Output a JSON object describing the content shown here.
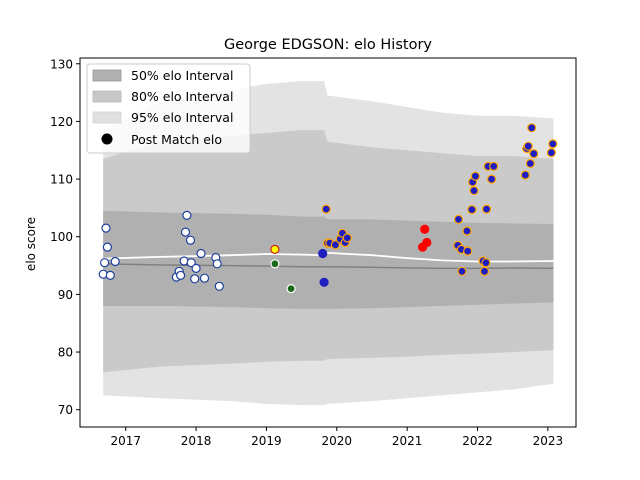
{
  "chart_data": {
    "type": "scatter",
    "title": "George EDGSON: elo History",
    "xlabel": "",
    "ylabel": "elo score",
    "xlim": [
      2016.35,
      2023.4
    ],
    "ylim": [
      67,
      131
    ],
    "x_ticks": [
      2017,
      2018,
      2019,
      2020,
      2021,
      2022,
      2023
    ],
    "x_tick_labels": [
      "2017",
      "2018",
      "2019",
      "2020",
      "2021",
      "2022",
      "2023"
    ],
    "y_ticks": [
      70,
      80,
      90,
      100,
      110,
      120,
      130
    ],
    "y_tick_labels": [
      "70",
      "80",
      "90",
      "100",
      "110",
      "120",
      "130"
    ],
    "grid": false,
    "legend_position": "top-left",
    "legend": [
      {
        "label": "50% elo Interval",
        "kind": "band50"
      },
      {
        "label": "80% elo Interval",
        "kind": "band80"
      },
      {
        "label": "95% elo Interval",
        "kind": "band95"
      },
      {
        "label": "Post Match elo",
        "kind": "marker"
      }
    ],
    "colors": {
      "band50": "#b0b0b0",
      "band80": "#c8c8c8",
      "band95": "#e0e0e0",
      "median_line": "#808080",
      "mean_line": "#ffffff"
    },
    "band_x": [
      2016.68,
      2017.5,
      2018.5,
      2019.0,
      2019.5,
      2019.82,
      2019.87,
      2020.5,
      2021.0,
      2021.5,
      2022.0,
      2022.5,
      2023.08
    ],
    "band95_upper": [
      118.5,
      123.5,
      125.5,
      126.5,
      127.0,
      127.0,
      124.5,
      123.5,
      122.5,
      121.5,
      121.0,
      121.0,
      120.5
    ],
    "band95_lower": [
      72.5,
      72.0,
      71.5,
      71.0,
      70.8,
      70.8,
      71.0,
      71.5,
      72.0,
      72.5,
      73.0,
      73.5,
      74.5
    ],
    "band80_upper": [
      113.5,
      116.5,
      117.5,
      118.0,
      118.5,
      118.5,
      116.5,
      115.5,
      115.0,
      114.5,
      114.0,
      114.0,
      113.5
    ],
    "band80_lower": [
      76.5,
      77.5,
      78.0,
      78.3,
      78.5,
      78.5,
      78.8,
      79.0,
      79.2,
      79.5,
      79.7,
      80.0,
      80.3
    ],
    "band50_upper": [
      104.5,
      104.2,
      104.0,
      103.8,
      103.5,
      103.5,
      103.0,
      103.0,
      102.8,
      102.6,
      102.4,
      102.3,
      102.2
    ],
    "band50_lower": [
      88.0,
      88.0,
      87.8,
      87.6,
      87.5,
      87.5,
      87.5,
      87.6,
      87.8,
      88.0,
      88.2,
      88.4,
      88.6
    ],
    "median_line": [
      95.3,
      95.1,
      95.0,
      94.9,
      94.8,
      94.8,
      94.8,
      94.7,
      94.6,
      94.5,
      94.5,
      94.6,
      94.5
    ],
    "mean_line": [
      96.2,
      96.5,
      96.8,
      97.0,
      96.9,
      96.8,
      97.2,
      96.8,
      96.3,
      95.9,
      95.7,
      95.7,
      95.8
    ],
    "series": [
      {
        "label": "Post Match elo",
        "fill": "#ffffff",
        "edge": "#1f3fa0",
        "points": [
          [
            2016.68,
            93.5
          ],
          [
            2016.7,
            95.5
          ],
          [
            2016.72,
            101.5
          ],
          [
            2016.74,
            98.2
          ],
          [
            2016.78,
            93.3
          ],
          [
            2016.85,
            95.7
          ],
          [
            2017.72,
            93.0
          ],
          [
            2017.76,
            94.0
          ],
          [
            2017.78,
            93.3
          ],
          [
            2017.83,
            95.8
          ],
          [
            2017.85,
            100.8
          ],
          [
            2017.87,
            103.7
          ],
          [
            2017.92,
            99.4
          ],
          [
            2017.93,
            95.5
          ],
          [
            2017.98,
            92.7
          ],
          [
            2018.0,
            94.5
          ],
          [
            2018.07,
            97.1
          ],
          [
            2018.12,
            92.8
          ],
          [
            2018.28,
            96.4
          ],
          [
            2018.3,
            95.3
          ],
          [
            2018.33,
            91.4
          ]
        ]
      },
      {
        "label": "Post Match elo",
        "fill": "#ffff00",
        "edge": "#d02020",
        "points": [
          [
            2019.12,
            97.8
          ]
        ]
      },
      {
        "label": "Post Match elo",
        "fill": "#1a6a1a",
        "edge": "#ffffff",
        "points": [
          [
            2019.12,
            95.3
          ],
          [
            2019.35,
            91.0
          ]
        ]
      },
      {
        "label": "Post Match elo",
        "fill": "#1f1fbf",
        "edge": "#1f1fbf",
        "points": [
          [
            2019.8,
            97.1
          ],
          [
            2019.82,
            92.1
          ]
        ]
      },
      {
        "label": "Post Match elo",
        "fill": "#1f1fbf",
        "edge": "#ffa500",
        "points": [
          [
            2019.85,
            104.8
          ],
          [
            2019.87,
            98.9
          ],
          [
            2019.9,
            98.9
          ],
          [
            2019.98,
            98.6
          ],
          [
            2020.05,
            99.6
          ],
          [
            2020.08,
            100.6
          ],
          [
            2020.12,
            99.0
          ],
          [
            2020.15,
            99.8
          ],
          [
            2021.72,
            98.5
          ],
          [
            2021.73,
            103.0
          ],
          [
            2021.77,
            97.8
          ],
          [
            2021.78,
            94.0
          ],
          [
            2021.85,
            101.0
          ],
          [
            2021.86,
            97.5
          ],
          [
            2021.92,
            104.7
          ],
          [
            2021.93,
            109.5
          ],
          [
            2021.95,
            108.0
          ],
          [
            2021.97,
            110.5
          ],
          [
            2022.08,
            95.8
          ],
          [
            2022.1,
            94.0
          ],
          [
            2022.12,
            95.5
          ],
          [
            2022.13,
            104.8
          ],
          [
            2022.15,
            112.2
          ],
          [
            2022.2,
            110.0
          ],
          [
            2022.23,
            112.2
          ],
          [
            2022.68,
            110.7
          ],
          [
            2022.7,
            115.3
          ],
          [
            2022.72,
            115.7
          ],
          [
            2022.75,
            112.7
          ],
          [
            2022.77,
            118.9
          ],
          [
            2022.8,
            114.4
          ],
          [
            2023.05,
            114.6
          ],
          [
            2023.07,
            116.1
          ]
        ]
      },
      {
        "label": "Post Match elo",
        "fill": "#ff0000",
        "edge": "#ff0000",
        "points": [
          [
            2021.22,
            98.2
          ],
          [
            2021.25,
            101.3
          ],
          [
            2021.28,
            99.0
          ]
        ]
      }
    ]
  }
}
